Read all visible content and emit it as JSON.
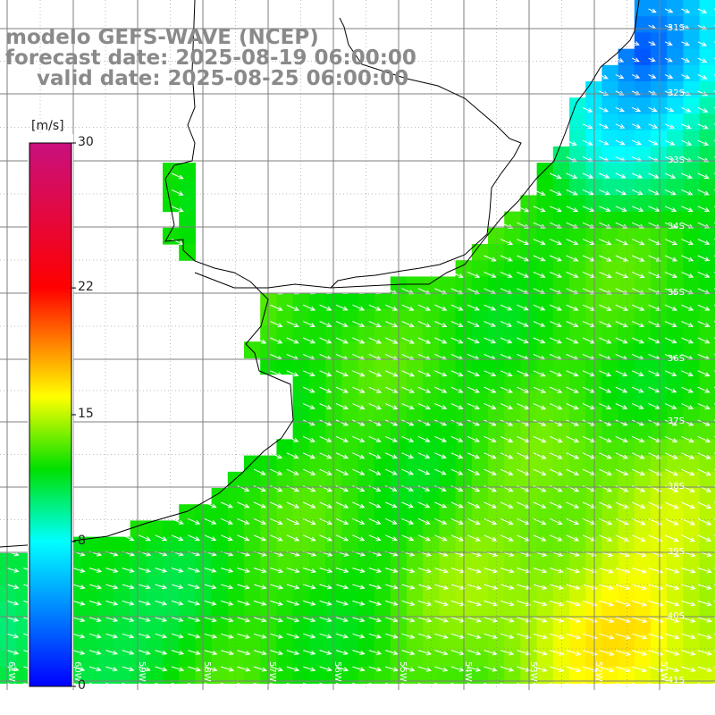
{
  "title": {
    "model": "modelo GEFS-WAVE (NCEP)",
    "forecast": "forecast date: 2025-08-19 06:00:00",
    "valid": "valid date: 2025-08-25 06:00:00"
  },
  "colorbar": {
    "unit": "[m/s]",
    "ticks": [
      "30",
      "22",
      "15",
      "8",
      "0"
    ],
    "min": 0,
    "max": 30,
    "stops": [
      {
        "value": 0,
        "color": "#0000ff"
      },
      {
        "value": 8,
        "color": "#00ffff"
      },
      {
        "value": 12,
        "color": "#00e000"
      },
      {
        "value": 16,
        "color": "#ffff00"
      },
      {
        "value": 22,
        "color": "#ff0000"
      },
      {
        "value": 30,
        "color": "#c8107e"
      }
    ]
  },
  "grid": {
    "lat_labels": [
      "31S",
      "32S",
      "33S",
      "34S",
      "35S",
      "36S",
      "37S",
      "38S",
      "39S",
      "40S",
      "41S"
    ],
    "lon_labels": [
      "61W",
      "60W",
      "59W",
      "58W",
      "57W",
      "56W",
      "55W",
      "54W",
      "53W",
      "52W",
      "51W"
    ]
  },
  "wind_field": {
    "units": "m/s",
    "direction": "southeast",
    "regions": [
      {
        "area": "north-east",
        "speed_range": [
          2,
          6
        ]
      },
      {
        "area": "river plate estuary",
        "speed_range": [
          11,
          12
        ]
      },
      {
        "area": "central shelf",
        "speed_range": [
          11,
          14
        ]
      },
      {
        "area": "south-east",
        "speed_range": [
          15,
          17
        ]
      },
      {
        "area": "south-west coast",
        "speed_range": [
          8,
          11
        ]
      }
    ]
  },
  "colors": {
    "background": "#ffffff",
    "title": "#8a8a8a",
    "grid": "#7f7f7f",
    "coast": "#000000",
    "arrows": "#ffffff"
  }
}
